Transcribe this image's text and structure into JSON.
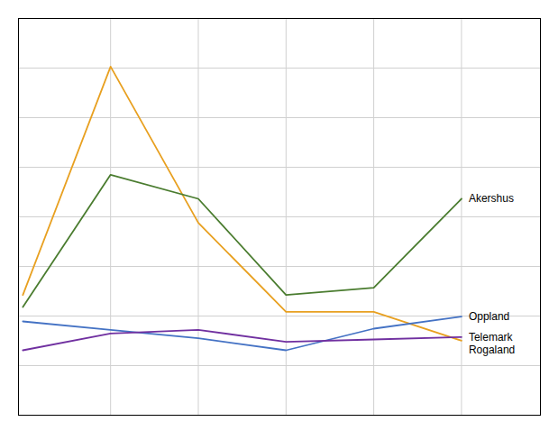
{
  "chart_data": {
    "type": "line",
    "x": [
      0,
      1,
      2,
      3,
      4,
      5
    ],
    "xlim": [
      -0.05,
      5.9
    ],
    "xticks": [
      1,
      2,
      3,
      4,
      5
    ],
    "ylim": [
      -2500,
      14000
    ],
    "yticks": [
      -2500,
      -437.5,
      1625,
      3687.5,
      5750,
      7812.5,
      9875,
      11937.5,
      14000
    ],
    "grid": true,
    "tick_labels": false,
    "series": [
      {
        "name": "Rogaland",
        "color": "#e8a020",
        "values": [
          2500,
          12000,
          5500,
          1800,
          1800,
          600
        ]
      },
      {
        "name": "Akershus",
        "color": "#4a7c2f",
        "values": [
          2000,
          7500,
          6500,
          2500,
          2800,
          6500
        ]
      },
      {
        "name": "Oppland",
        "color": "#4472c4",
        "values": [
          1400,
          1050,
          700,
          200,
          1100,
          1600
        ]
      },
      {
        "name": "Telemark",
        "color": "#7030a0",
        "values": [
          200,
          900,
          1050,
          550,
          650,
          750
        ]
      }
    ]
  }
}
